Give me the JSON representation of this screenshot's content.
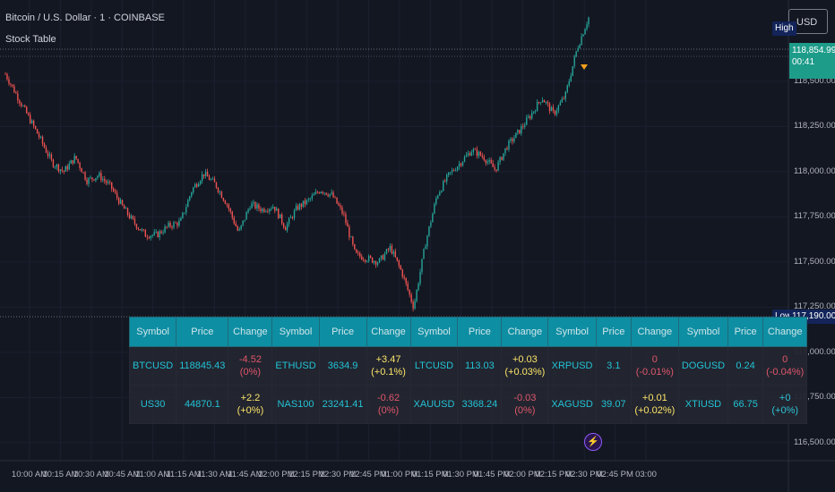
{
  "header": {
    "title": "Bitcoin / U.S. Dollar · 1 · COINBASE",
    "indicator": "Stock Table"
  },
  "currency_button": "USD",
  "price_axis": {
    "labels": [
      "118,500.00",
      "118,250.00",
      "118,000.00",
      "117,750.00",
      "117,500.00",
      "117,250.00",
      "117,000.00",
      "116,750.00",
      "116,500.00"
    ],
    "high_label": "High",
    "low_label": "Low",
    "low_value": "117,190.00",
    "current_price": "118,854.99",
    "countdown": "00:41",
    "colors": {
      "up": "#26a69a",
      "down": "#ef5350",
      "high_low_tag": "#12245a"
    }
  },
  "time_axis": {
    "labels": [
      "10:00 AM",
      "10:15 AM",
      "10:30 AM",
      "10:45 AM",
      "11:00 AM",
      "11:15 AM",
      "11:30 AM",
      "11:45 AM",
      "12:00 PM",
      "12:15 PM",
      "12:30 PM",
      "12:45 PM",
      "01:00 PM",
      "01:15 PM",
      "01:30 PM",
      "01:45 PM",
      "02:00 PM",
      "02:15 PM",
      "02:30 PM",
      "02:45 PM",
      "03:00"
    ]
  },
  "chart_data": {
    "type": "candlestick",
    "symbol": "BTCUSD",
    "ylim": [
      116400,
      118950
    ],
    "price_path": [
      118540,
      118420,
      118300,
      118180,
      118050,
      118000,
      118080,
      117950,
      117980,
      117920,
      117810,
      117720,
      117650,
      117650,
      117700,
      117720,
      117900,
      117990,
      117930,
      117820,
      117660,
      117820,
      117790,
      117810,
      117690,
      117800,
      117840,
      117900,
      117870,
      117760,
      117540,
      117520,
      117500,
      117580,
      117440,
      117250,
      117600,
      117870,
      117980,
      118050,
      118120,
      118080,
      118010,
      118140,
      118220,
      118310,
      118410,
      118320,
      118420,
      118680,
      118854
    ]
  },
  "table": {
    "headers": [
      "Symbol",
      "Price",
      "Change",
      "Symbol",
      "Price",
      "Change",
      "Symbol",
      "Price",
      "Change",
      "Symbol",
      "Price",
      "Change",
      "Symbol",
      "Price",
      "Change"
    ],
    "rows": [
      [
        {
          "t": "BTCUSD",
          "c": "sym"
        },
        {
          "t": "118845.43",
          "c": "prc"
        },
        {
          "t": "-4.52",
          "t2": "(0%)",
          "c": "neg"
        },
        {
          "t": "ETHUSD",
          "c": "sym"
        },
        {
          "t": "3634.9",
          "c": "prc"
        },
        {
          "t": "+3.47",
          "t2": "(+0.1%)",
          "c": "pos"
        },
        {
          "t": "LTCUSD",
          "c": "sym"
        },
        {
          "t": "113.03",
          "c": "prc"
        },
        {
          "t": "+0.03",
          "t2": "(+0.03%)",
          "c": "pos"
        },
        {
          "t": "XRPUSD",
          "c": "sym"
        },
        {
          "t": "3.1",
          "c": "prc"
        },
        {
          "t": "0",
          "t2": "(-0.01%)",
          "c": "neg"
        },
        {
          "t": "DOGUSD",
          "c": "sym"
        },
        {
          "t": "0.24",
          "c": "prc"
        },
        {
          "t": "0",
          "t2": "(-0.04%)",
          "c": "neg"
        }
      ],
      [
        {
          "t": "US30",
          "c": "sym"
        },
        {
          "t": "44870.1",
          "c": "prc"
        },
        {
          "t": "+2.2",
          "t2": "(+0%)",
          "c": "pos"
        },
        {
          "t": "NAS100",
          "c": "sym"
        },
        {
          "t": "23241.41",
          "c": "prc"
        },
        {
          "t": "-0.62",
          "t2": "(0%)",
          "c": "neg"
        },
        {
          "t": "XAUUSD",
          "c": "sym"
        },
        {
          "t": "3368.24",
          "c": "prc"
        },
        {
          "t": "-0.03",
          "t2": "(0%)",
          "c": "neg"
        },
        {
          "t": "XAGUSD",
          "c": "sym"
        },
        {
          "t": "39.07",
          "c": "prc"
        },
        {
          "t": "+0.01",
          "t2": "(+0.02%)",
          "c": "pos"
        },
        {
          "t": "XTIUSD",
          "c": "sym"
        },
        {
          "t": "66.75",
          "c": "prc"
        },
        {
          "t": "+0",
          "t2": "(+0%)",
          "c": "neu"
        }
      ]
    ]
  }
}
